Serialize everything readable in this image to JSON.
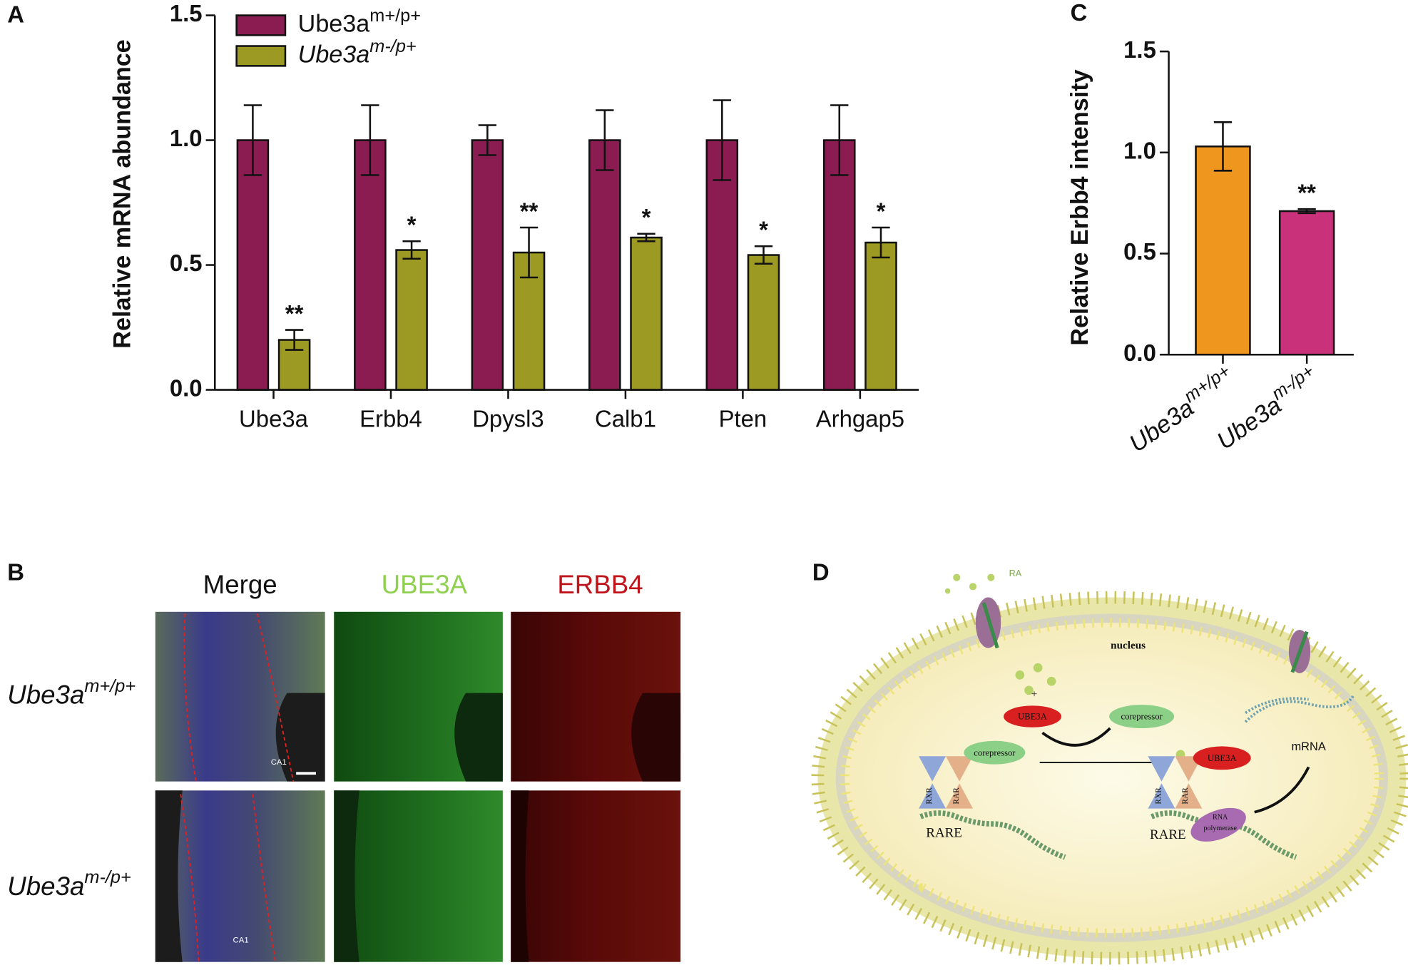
{
  "chart_data": [
    {
      "type": "bar",
      "label": "A",
      "ylabel": "Relative mRNA abundance",
      "categories": [
        "Ube3a",
        "Erbb4",
        "Dpysl3",
        "Calb1",
        "Pten",
        "Arhgap5"
      ],
      "series": [
        {
          "name": "Ube3a",
          "superscript": "m+/p+",
          "font_style": "normal",
          "color": "#8b1c52",
          "values": [
            1.0,
            1.0,
            1.0,
            1.0,
            1.0,
            1.0
          ],
          "errors": [
            0.14,
            0.14,
            0.06,
            0.12,
            0.16,
            0.14
          ],
          "annotations": [
            null,
            null,
            null,
            null,
            null,
            null
          ]
        },
        {
          "name": "Ube3a",
          "superscript": "m-/p+",
          "font_style": "italic",
          "color": "#9c9a22",
          "values": [
            0.2,
            0.56,
            0.55,
            0.61,
            0.54,
            0.59
          ],
          "errors": [
            0.04,
            0.035,
            0.1,
            0.015,
            0.035,
            0.06
          ],
          "annotations": [
            "**",
            "*",
            "**",
            "*",
            "*",
            "*"
          ]
        }
      ],
      "ylim": [
        0,
        1.5
      ],
      "yticks": [
        {
          "value": 0,
          "label": "0.0"
        },
        {
          "value": 0.5,
          "label": "0.5"
        },
        {
          "value": 1,
          "label": "1.0"
        },
        {
          "value": 1.5,
          "label": "1.5"
        }
      ]
    },
    {
      "type": "bar",
      "label": "C",
      "ylabel": "Relative Erbb4 intensity",
      "categories": [
        "Ube3a",
        "Ube3a"
      ],
      "category_superscripts": [
        "m+/p+",
        "m-/p+"
      ],
      "values": [
        1.03,
        0.71
      ],
      "errors": [
        0.12,
        0.01
      ],
      "colors": [
        "#ef961f",
        "#c9317a"
      ],
      "annotations": [
        null,
        "**"
      ],
      "ylim": [
        0,
        1.5
      ],
      "yticks": [
        {
          "value": 0,
          "label": "0.0"
        },
        {
          "value": 0.5,
          "label": "0.5"
        },
        {
          "value": 1,
          "label": "1.0"
        },
        {
          "value": 1.5,
          "label": "1.5"
        }
      ]
    }
  ],
  "micrographs": {
    "label": "B",
    "columns": [
      "Merge",
      "UBE3A",
      "ERBB4"
    ],
    "rows": [
      {
        "name": "Ube3a",
        "superscript": "m+/p+"
      },
      {
        "name": "Ube3a",
        "superscript": "m-/p+"
      }
    ],
    "region": "CA1"
  },
  "diagram": {
    "label": "D",
    "ligand": "RA",
    "compartment": "nucleus",
    "plus": "+",
    "left_complex": {
      "receptor_1": "RXR",
      "receptor_2": "RAR",
      "element": "RARE",
      "corepressor": "corepressor"
    },
    "ube3a": "UBE3A",
    "released": "corepressor",
    "right_complex": {
      "receptor_1": "RXR",
      "receptor_2": "RAR",
      "element": "RARE",
      "ube3a": "UBE3A",
      "polymerase_1": "RNA",
      "polymerase_2": "polymerase"
    },
    "product": "mRNA"
  }
}
